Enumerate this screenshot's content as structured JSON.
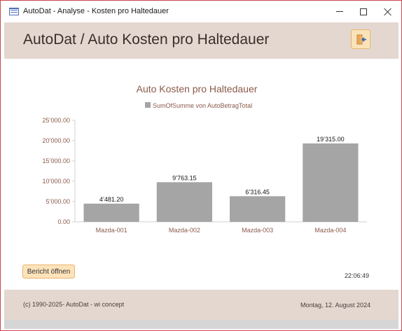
{
  "window": {
    "title": "AutoDat - Analyse - Kosten pro Haltedauer",
    "icon": "form-icon"
  },
  "header": {
    "title": "AutoDat / Auto Kosten pro Haltedauer",
    "exit_icon": "exit-door-icon"
  },
  "chart_data": {
    "type": "bar",
    "title": "Auto Kosten pro Haltedauer",
    "categories": [
      "Mazda-001",
      "Mazda-002",
      "Mazda-003",
      "Mazda-004"
    ],
    "series": [
      {
        "name": "SumOfSumme von AutoBetragTotal",
        "values": [
          4481.2,
          9763.15,
          6316.45,
          19315.0
        ]
      }
    ],
    "data_labels": [
      "4’481.20",
      "9’763.15",
      "6’316.45",
      "19’315.00"
    ],
    "yticks": [
      "0.00",
      "5’000.00",
      "10’000.00",
      "15’000.00",
      "20’000.00",
      "25’000.00"
    ],
    "ylim": [
      0,
      25000
    ],
    "legend": "top-center",
    "grid": false,
    "bar_color": "#a5a5a5",
    "title_color": "#8b5a4a"
  },
  "controls": {
    "open_report_label": "Bericht öffnen",
    "time": "22:06:49"
  },
  "footer": {
    "copyright": "(c) 1990-2025- AutoDat - wi concept",
    "date": "Montag, 12. August 2024"
  }
}
